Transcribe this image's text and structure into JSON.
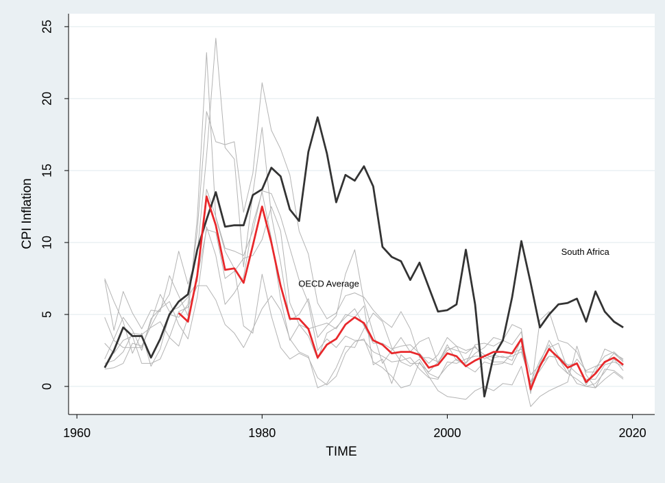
{
  "chart_data": {
    "type": "line",
    "x_label": "TIME",
    "y_label": "CPI Inflation",
    "x": [
      1963,
      1964,
      1965,
      1966,
      1967,
      1968,
      1969,
      1970,
      1971,
      1972,
      1973,
      1974,
      1975,
      1976,
      1977,
      1978,
      1979,
      1980,
      1981,
      1982,
      1983,
      1984,
      1985,
      1986,
      1987,
      1988,
      1989,
      1990,
      1991,
      1992,
      1993,
      1994,
      1995,
      1996,
      1997,
      1998,
      1999,
      2000,
      2001,
      2002,
      2003,
      2004,
      2005,
      2006,
      2007,
      2008,
      2009,
      2010,
      2011,
      2012,
      2013,
      2014,
      2015,
      2016,
      2017,
      2018,
      2019
    ],
    "xlim": [
      1959.1,
      2022.4
    ],
    "xticks": [
      1960,
      1980,
      2000,
      2020
    ],
    "ylim": [
      -1.95,
      25.9
    ],
    "yticks": [
      0,
      5,
      10,
      15,
      20,
      25
    ],
    "grid": true,
    "series": [
      {
        "color": "#b3b3b3",
        "values": [
          1.9,
          3.3,
          4.8,
          3.9,
          2.5,
          4.7,
          5.4,
          6.4,
          9.4,
          7.1,
          9.2,
          16.0,
          24.2,
          16.6,
          15.8,
          8.3,
          13.4,
          18.0,
          11.9,
          8.6,
          4.6,
          5.0,
          6.1,
          3.4,
          4.2,
          4.9,
          7.8,
          9.5,
          5.9,
          3.7,
          1.6,
          2.5,
          3.4,
          2.4,
          3.1,
          3.4,
          1.6,
          2.9,
          1.8,
          1.6,
          2.9,
          3.0,
          2.8,
          3.2,
          4.3,
          4.0,
          -0.5,
          4.6,
          5.2,
          3.2,
          3.0,
          2.4,
          1.0,
          1.0,
          2.6,
          2.3,
          1.7
        ]
      },
      {
        "color": "#b3b3b3",
        "values": [
          7.4,
          3.9,
          6.6,
          5.1,
          4.0,
          5.3,
          5.2,
          7.7,
          6.3,
          4.9,
          11.7,
          23.2,
          11.7,
          9.4,
          8.2,
          4.2,
          3.7,
          7.8,
          4.9,
          2.7,
          1.9,
          2.3,
          2.0,
          0.6,
          0.1,
          0.7,
          2.3,
          3.1,
          3.3,
          1.7,
          1.3,
          0.7,
          -0.1,
          0.1,
          1.7,
          0.7,
          -0.3,
          -0.7,
          -0.8,
          -0.9,
          -0.3,
          0.0,
          -0.3,
          0.2,
          0.1,
          1.4,
          -1.4,
          -0.7,
          -0.3,
          0.0,
          0.3,
          2.8,
          0.8,
          -0.1,
          0.5,
          1.0,
          0.5
        ]
      },
      {
        "color": "#b3b3b3",
        "values": [
          7.5,
          5.9,
          4.5,
          2.3,
          3.7,
          1.4,
          2.6,
          5.0,
          4.8,
          5.7,
          10.8,
          19.1,
          17.0,
          16.8,
          17.0,
          12.1,
          14.8,
          21.1,
          17.8,
          16.5,
          14.7,
          10.8,
          9.2,
          5.8,
          4.7,
          5.1,
          6.3,
          6.5,
          6.2,
          5.3,
          4.6,
          4.1,
          5.2,
          4.0,
          2.0,
          2.0,
          1.7,
          2.5,
          2.8,
          2.5,
          2.7,
          2.2,
          2.0,
          2.1,
          1.8,
          3.3,
          0.8,
          1.5,
          2.7,
          3.0,
          1.2,
          0.2,
          0.0,
          -0.1,
          1.2,
          1.1,
          0.6
        ]
      },
      {
        "color": "#b3b3b3",
        "values": [
          4.8,
          3.2,
          2.7,
          2.7,
          2.7,
          4.5,
          6.4,
          5.2,
          5.5,
          6.2,
          7.3,
          13.7,
          11.8,
          9.6,
          9.4,
          9.1,
          10.8,
          13.6,
          13.4,
          11.8,
          9.6,
          7.4,
          5.8,
          2.5,
          3.3,
          2.7,
          3.5,
          3.2,
          3.2,
          2.4,
          2.1,
          1.7,
          1.8,
          2.0,
          1.2,
          0.6,
          0.5,
          1.7,
          1.6,
          1.9,
          2.1,
          2.1,
          1.7,
          1.7,
          1.5,
          2.8,
          0.1,
          1.5,
          2.1,
          2.0,
          0.9,
          0.5,
          0.0,
          0.2,
          1.0,
          1.9,
          1.1
        ]
      },
      {
        "color": "#b3b3b3",
        "values": [
          3.0,
          2.3,
          3.2,
          3.5,
          1.6,
          1.6,
          1.9,
          3.4,
          5.2,
          5.5,
          7.0,
          7.0,
          6.0,
          4.3,
          3.7,
          2.7,
          4.0,
          5.4,
          6.3,
          5.3,
          3.3,
          2.4,
          2.1,
          -0.1,
          0.2,
          1.3,
          2.8,
          2.7,
          4.0,
          5.1,
          4.5,
          2.7,
          1.7,
          1.4,
          1.9,
          0.9,
          0.6,
          1.4,
          1.9,
          1.4,
          1.0,
          1.7,
          1.5,
          1.6,
          2.3,
          2.6,
          0.3,
          1.1,
          2.1,
          2.0,
          1.5,
          0.9,
          0.5,
          0.5,
          1.5,
          1.7,
          1.4
        ]
      },
      {
        "color": "#b3b3b3",
        "values": [
          1.2,
          1.3,
          1.6,
          3.0,
          2.8,
          4.2,
          5.4,
          5.9,
          4.3,
          3.3,
          6.2,
          11.1,
          9.1,
          5.7,
          6.5,
          7.6,
          11.3,
          13.5,
          10.3,
          6.1,
          3.2,
          4.3,
          3.5,
          1.9,
          3.7,
          4.1,
          4.8,
          5.4,
          4.2,
          3.0,
          3.0,
          2.6,
          2.8,
          2.9,
          2.3,
          1.6,
          2.2,
          3.4,
          2.8,
          1.6,
          2.3,
          2.7,
          3.4,
          3.2,
          2.9,
          3.8,
          -0.4,
          1.6,
          3.2,
          2.1,
          1.5,
          1.6,
          0.1,
          1.3,
          2.1,
          2.4,
          1.8
        ]
      },
      {
        "color": "#b3b3b3",
        "values": [
          1.6,
          1.8,
          2.4,
          3.7,
          3.6,
          4.1,
          4.5,
          3.4,
          2.8,
          4.8,
          7.6,
          10.9,
          10.7,
          7.5,
          8.0,
          8.9,
          9.1,
          10.2,
          12.5,
          10.8,
          5.8,
          4.3,
          4.0,
          4.2,
          4.4,
          4.0,
          5.0,
          4.8,
          5.6,
          1.5,
          1.9,
          0.2,
          2.2,
          1.6,
          1.6,
          1.0,
          1.7,
          2.7,
          2.5,
          2.3,
          2.8,
          1.9,
          2.2,
          2.0,
          2.1,
          2.4,
          0.3,
          1.8,
          2.9,
          1.5,
          0.9,
          1.9,
          1.1,
          1.4,
          1.6,
          2.3,
          1.9
        ]
      },
      {
        "name": "South Africa",
        "color": "#333333",
        "values": [
          1.3,
          2.5,
          4.1,
          3.5,
          3.5,
          2.0,
          3.3,
          5.0,
          5.9,
          6.4,
          9.5,
          11.6,
          13.5,
          11.1,
          11.2,
          11.2,
          13.3,
          13.7,
          15.2,
          14.6,
          12.3,
          11.5,
          16.3,
          18.7,
          16.2,
          12.8,
          14.7,
          14.3,
          15.3,
          13.9,
          9.7,
          9.0,
          8.7,
          7.4,
          8.6,
          6.9,
          5.2,
          5.3,
          5.7,
          9.5,
          5.7,
          -0.7,
          2.1,
          3.2,
          6.2,
          10.1,
          7.2,
          4.1,
          5.0,
          5.7,
          5.8,
          6.1,
          4.5,
          6.6,
          5.2,
          4.5,
          4.1
        ]
      },
      {
        "name": "OECD Average",
        "color": "#e8282b",
        "values": [
          null,
          null,
          null,
          null,
          null,
          null,
          null,
          null,
          5.1,
          4.5,
          7.7,
          13.2,
          11.2,
          8.1,
          8.2,
          7.2,
          9.8,
          12.5,
          10.0,
          7.0,
          4.7,
          4.7,
          4.0,
          2.0,
          2.9,
          3.3,
          4.3,
          4.8,
          4.4,
          3.2,
          2.9,
          2.3,
          2.4,
          2.4,
          2.2,
          1.3,
          1.5,
          2.3,
          2.1,
          1.4,
          1.8,
          2.1,
          2.4,
          2.4,
          2.3,
          3.3,
          -0.2,
          1.4,
          2.6,
          2.0,
          1.3,
          1.6,
          0.3,
          0.9,
          1.7,
          2.0,
          1.5
        ]
      }
    ]
  }
}
